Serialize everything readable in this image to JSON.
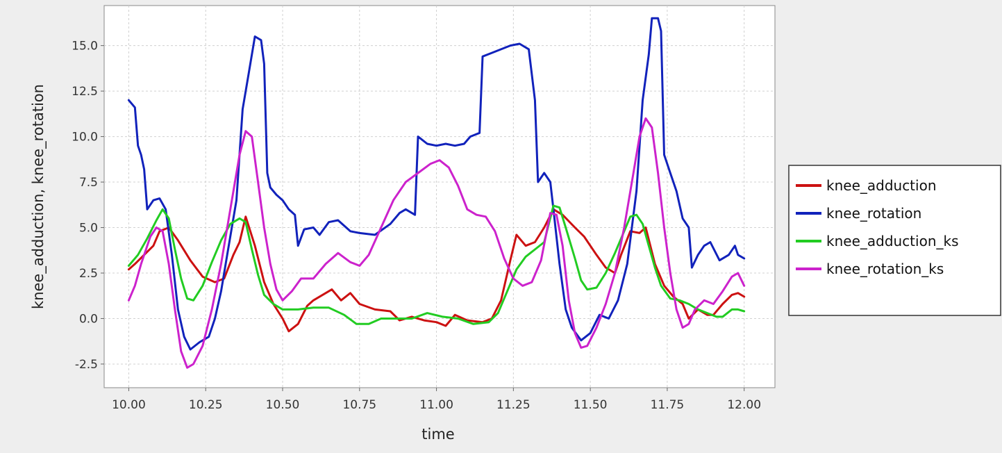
{
  "chart_data": {
    "type": "line",
    "title": "",
    "xlabel": "time",
    "ylabel": "knee_adduction, knee_rotation",
    "xlim": [
      9.92,
      12.1
    ],
    "ylim": [
      -3.8,
      17.2
    ],
    "x_ticks": [
      "10.00",
      "10.25",
      "10.50",
      "10.75",
      "11.00",
      "11.25",
      "11.50",
      "11.75",
      "12.00"
    ],
    "y_ticks": [
      "-2.5",
      "0.0",
      "2.5",
      "5.0",
      "7.5",
      "10.0",
      "12.5",
      "15.0"
    ],
    "grid": true,
    "legend_position": "right",
    "series": [
      {
        "name": "knee_adduction",
        "color": "#cc1111",
        "points": [
          [
            10.0,
            2.7
          ],
          [
            10.02,
            3.0
          ],
          [
            10.05,
            3.5
          ],
          [
            10.08,
            4.0
          ],
          [
            10.1,
            4.8
          ],
          [
            10.13,
            5.0
          ],
          [
            10.16,
            4.3
          ],
          [
            10.2,
            3.2
          ],
          [
            10.24,
            2.3
          ],
          [
            10.28,
            2.0
          ],
          [
            10.31,
            2.2
          ],
          [
            10.34,
            3.5
          ],
          [
            10.36,
            4.2
          ],
          [
            10.38,
            5.6
          ],
          [
            10.41,
            4.0
          ],
          [
            10.44,
            2.0
          ],
          [
            10.47,
            0.8
          ],
          [
            10.5,
            0.0
          ],
          [
            10.52,
            -0.7
          ],
          [
            10.55,
            -0.3
          ],
          [
            10.58,
            0.7
          ],
          [
            10.6,
            1.0
          ],
          [
            10.63,
            1.3
          ],
          [
            10.66,
            1.6
          ],
          [
            10.69,
            1.0
          ],
          [
            10.72,
            1.4
          ],
          [
            10.75,
            0.8
          ],
          [
            10.8,
            0.5
          ],
          [
            10.85,
            0.4
          ],
          [
            10.88,
            -0.1
          ],
          [
            10.92,
            0.1
          ],
          [
            10.96,
            -0.1
          ],
          [
            11.0,
            -0.2
          ],
          [
            11.03,
            -0.4
          ],
          [
            11.06,
            0.2
          ],
          [
            11.1,
            -0.1
          ],
          [
            11.15,
            -0.2
          ],
          [
            11.18,
            0.0
          ],
          [
            11.21,
            1.0
          ],
          [
            11.24,
            3.2
          ],
          [
            11.26,
            4.6
          ],
          [
            11.29,
            4.0
          ],
          [
            11.32,
            4.2
          ],
          [
            11.35,
            5.0
          ],
          [
            11.38,
            6.0
          ],
          [
            11.41,
            5.7
          ],
          [
            11.45,
            5.0
          ],
          [
            11.48,
            4.5
          ],
          [
            11.52,
            3.5
          ],
          [
            11.55,
            2.8
          ],
          [
            11.58,
            2.5
          ],
          [
            11.6,
            3.5
          ],
          [
            11.63,
            4.8
          ],
          [
            11.66,
            4.7
          ],
          [
            11.68,
            5.0
          ],
          [
            11.71,
            3.0
          ],
          [
            11.74,
            1.8
          ],
          [
            11.77,
            1.2
          ],
          [
            11.8,
            0.8
          ],
          [
            11.82,
            0.0
          ],
          [
            11.85,
            0.5
          ],
          [
            11.88,
            0.2
          ],
          [
            11.9,
            0.2
          ],
          [
            11.93,
            0.8
          ],
          [
            11.96,
            1.3
          ],
          [
            11.98,
            1.4
          ],
          [
            12.0,
            1.2
          ]
        ]
      },
      {
        "name": "knee_rotation",
        "color": "#1122bb",
        "points": [
          [
            10.0,
            12.0
          ],
          [
            10.02,
            11.6
          ],
          [
            10.03,
            9.5
          ],
          [
            10.04,
            9.0
          ],
          [
            10.05,
            8.2
          ],
          [
            10.06,
            6.0
          ],
          [
            10.08,
            6.5
          ],
          [
            10.1,
            6.6
          ],
          [
            10.12,
            6.0
          ],
          [
            10.14,
            3.5
          ],
          [
            10.16,
            0.5
          ],
          [
            10.18,
            -1.0
          ],
          [
            10.2,
            -1.7
          ],
          [
            10.23,
            -1.3
          ],
          [
            10.26,
            -1.0
          ],
          [
            10.28,
            0.0
          ],
          [
            10.3,
            1.5
          ],
          [
            10.32,
            3.5
          ],
          [
            10.35,
            6.5
          ],
          [
            10.37,
            11.5
          ],
          [
            10.39,
            13.5
          ],
          [
            10.41,
            15.5
          ],
          [
            10.43,
            15.3
          ],
          [
            10.44,
            14.0
          ],
          [
            10.45,
            8.0
          ],
          [
            10.46,
            7.2
          ],
          [
            10.48,
            6.8
          ],
          [
            10.5,
            6.5
          ],
          [
            10.52,
            6.0
          ],
          [
            10.54,
            5.7
          ],
          [
            10.55,
            4.0
          ],
          [
            10.57,
            4.9
          ],
          [
            10.6,
            5.0
          ],
          [
            10.62,
            4.6
          ],
          [
            10.65,
            5.3
          ],
          [
            10.68,
            5.4
          ],
          [
            10.72,
            4.8
          ],
          [
            10.75,
            4.7
          ],
          [
            10.8,
            4.6
          ],
          [
            10.85,
            5.2
          ],
          [
            10.88,
            5.8
          ],
          [
            10.9,
            6.0
          ],
          [
            10.93,
            5.7
          ],
          [
            10.94,
            10.0
          ],
          [
            10.97,
            9.6
          ],
          [
            11.0,
            9.5
          ],
          [
            11.03,
            9.6
          ],
          [
            11.06,
            9.5
          ],
          [
            11.09,
            9.6
          ],
          [
            11.11,
            10.0
          ],
          [
            11.14,
            10.2
          ],
          [
            11.15,
            14.4
          ],
          [
            11.18,
            14.6
          ],
          [
            11.21,
            14.8
          ],
          [
            11.24,
            15.0
          ],
          [
            11.27,
            15.1
          ],
          [
            11.3,
            14.8
          ],
          [
            11.32,
            12.0
          ],
          [
            11.33,
            7.5
          ],
          [
            11.35,
            8.0
          ],
          [
            11.37,
            7.5
          ],
          [
            11.38,
            6.0
          ],
          [
            11.4,
            3.0
          ],
          [
            11.42,
            0.5
          ],
          [
            11.44,
            -0.5
          ],
          [
            11.47,
            -1.2
          ],
          [
            11.5,
            -0.8
          ],
          [
            11.53,
            0.2
          ],
          [
            11.56,
            0.0
          ],
          [
            11.59,
            1.0
          ],
          [
            11.62,
            3.0
          ],
          [
            11.65,
            7.0
          ],
          [
            11.67,
            12.0
          ],
          [
            11.69,
            14.5
          ],
          [
            11.7,
            16.5
          ],
          [
            11.72,
            16.5
          ],
          [
            11.73,
            15.8
          ],
          [
            11.74,
            9.0
          ],
          [
            11.76,
            8.0
          ],
          [
            11.78,
            7.0
          ],
          [
            11.8,
            5.5
          ],
          [
            11.82,
            5.0
          ],
          [
            11.83,
            2.8
          ],
          [
            11.85,
            3.5
          ],
          [
            11.87,
            4.0
          ],
          [
            11.89,
            4.2
          ],
          [
            11.92,
            3.2
          ],
          [
            11.95,
            3.5
          ],
          [
            11.97,
            4.0
          ],
          [
            11.98,
            3.5
          ],
          [
            12.0,
            3.3
          ]
        ]
      },
      {
        "name": "knee_adduction_ks",
        "color": "#22cc22",
        "points": [
          [
            10.0,
            2.9
          ],
          [
            10.03,
            3.5
          ],
          [
            10.06,
            4.4
          ],
          [
            10.09,
            5.4
          ],
          [
            10.11,
            6.0
          ],
          [
            10.13,
            5.5
          ],
          [
            10.15,
            3.8
          ],
          [
            10.17,
            2.2
          ],
          [
            10.19,
            1.1
          ],
          [
            10.21,
            1.0
          ],
          [
            10.24,
            1.8
          ],
          [
            10.27,
            3.1
          ],
          [
            10.3,
            4.3
          ],
          [
            10.33,
            5.2
          ],
          [
            10.36,
            5.5
          ],
          [
            10.38,
            5.3
          ],
          [
            10.4,
            3.8
          ],
          [
            10.42,
            2.4
          ],
          [
            10.44,
            1.3
          ],
          [
            10.47,
            0.8
          ],
          [
            10.5,
            0.5
          ],
          [
            10.55,
            0.5
          ],
          [
            10.6,
            0.6
          ],
          [
            10.65,
            0.6
          ],
          [
            10.7,
            0.2
          ],
          [
            10.74,
            -0.3
          ],
          [
            10.78,
            -0.3
          ],
          [
            10.82,
            0.0
          ],
          [
            10.87,
            0.0
          ],
          [
            10.92,
            0.0
          ],
          [
            10.97,
            0.3
          ],
          [
            11.02,
            0.1
          ],
          [
            11.07,
            0.0
          ],
          [
            11.12,
            -0.3
          ],
          [
            11.17,
            -0.2
          ],
          [
            11.2,
            0.3
          ],
          [
            11.23,
            1.5
          ],
          [
            11.26,
            2.7
          ],
          [
            11.29,
            3.4
          ],
          [
            11.32,
            3.8
          ],
          [
            11.35,
            4.2
          ],
          [
            11.38,
            6.2
          ],
          [
            11.4,
            6.1
          ],
          [
            11.42,
            5.0
          ],
          [
            11.45,
            3.3
          ],
          [
            11.47,
            2.1
          ],
          [
            11.49,
            1.6
          ],
          [
            11.52,
            1.7
          ],
          [
            11.55,
            2.5
          ],
          [
            11.58,
            3.6
          ],
          [
            11.61,
            4.8
          ],
          [
            11.63,
            5.6
          ],
          [
            11.65,
            5.7
          ],
          [
            11.67,
            5.2
          ],
          [
            11.69,
            4.0
          ],
          [
            11.71,
            2.8
          ],
          [
            11.73,
            1.8
          ],
          [
            11.76,
            1.1
          ],
          [
            11.79,
            1.0
          ],
          [
            11.82,
            0.8
          ],
          [
            11.85,
            0.5
          ],
          [
            11.88,
            0.3
          ],
          [
            11.91,
            0.1
          ],
          [
            11.93,
            0.1
          ],
          [
            11.96,
            0.5
          ],
          [
            11.98,
            0.5
          ],
          [
            12.0,
            0.4
          ]
        ]
      },
      {
        "name": "knee_rotation_ks",
        "color": "#cc22cc",
        "points": [
          [
            10.0,
            1.0
          ],
          [
            10.02,
            1.8
          ],
          [
            10.04,
            3.0
          ],
          [
            10.07,
            4.5
          ],
          [
            10.09,
            5.0
          ],
          [
            10.11,
            4.8
          ],
          [
            10.13,
            3.0
          ],
          [
            10.15,
            0.5
          ],
          [
            10.17,
            -1.8
          ],
          [
            10.19,
            -2.7
          ],
          [
            10.21,
            -2.5
          ],
          [
            10.24,
            -1.5
          ],
          [
            10.27,
            0.5
          ],
          [
            10.3,
            3.0
          ],
          [
            10.33,
            6.0
          ],
          [
            10.36,
            9.0
          ],
          [
            10.38,
            10.3
          ],
          [
            10.4,
            10.0
          ],
          [
            10.42,
            7.5
          ],
          [
            10.44,
            5.0
          ],
          [
            10.46,
            3.0
          ],
          [
            10.48,
            1.6
          ],
          [
            10.5,
            1.0
          ],
          [
            10.53,
            1.5
          ],
          [
            10.56,
            2.2
          ],
          [
            10.6,
            2.2
          ],
          [
            10.64,
            3.0
          ],
          [
            10.68,
            3.6
          ],
          [
            10.72,
            3.1
          ],
          [
            10.75,
            2.9
          ],
          [
            10.78,
            3.5
          ],
          [
            10.82,
            5.0
          ],
          [
            10.86,
            6.5
          ],
          [
            10.9,
            7.5
          ],
          [
            10.94,
            8.0
          ],
          [
            10.98,
            8.5
          ],
          [
            11.01,
            8.7
          ],
          [
            11.04,
            8.3
          ],
          [
            11.07,
            7.3
          ],
          [
            11.1,
            6.0
          ],
          [
            11.13,
            5.7
          ],
          [
            11.16,
            5.6
          ],
          [
            11.19,
            4.8
          ],
          [
            11.22,
            3.3
          ],
          [
            11.25,
            2.2
          ],
          [
            11.28,
            1.8
          ],
          [
            11.31,
            2.0
          ],
          [
            11.34,
            3.2
          ],
          [
            11.37,
            5.8
          ],
          [
            11.39,
            5.7
          ],
          [
            11.41,
            4.0
          ],
          [
            11.43,
            1.0
          ],
          [
            11.45,
            -0.8
          ],
          [
            11.47,
            -1.6
          ],
          [
            11.49,
            -1.5
          ],
          [
            11.52,
            -0.5
          ],
          [
            11.55,
            0.8
          ],
          [
            11.58,
            2.5
          ],
          [
            11.61,
            5.0
          ],
          [
            11.64,
            8.0
          ],
          [
            11.66,
            10.0
          ],
          [
            11.68,
            11.0
          ],
          [
            11.7,
            10.5
          ],
          [
            11.72,
            8.0
          ],
          [
            11.74,
            5.0
          ],
          [
            11.76,
            2.5
          ],
          [
            11.78,
            0.5
          ],
          [
            11.8,
            -0.5
          ],
          [
            11.82,
            -0.3
          ],
          [
            11.84,
            0.5
          ],
          [
            11.87,
            1.0
          ],
          [
            11.9,
            0.8
          ],
          [
            11.93,
            1.5
          ],
          [
            11.96,
            2.3
          ],
          [
            11.98,
            2.5
          ],
          [
            12.0,
            1.8
          ]
        ]
      }
    ]
  }
}
